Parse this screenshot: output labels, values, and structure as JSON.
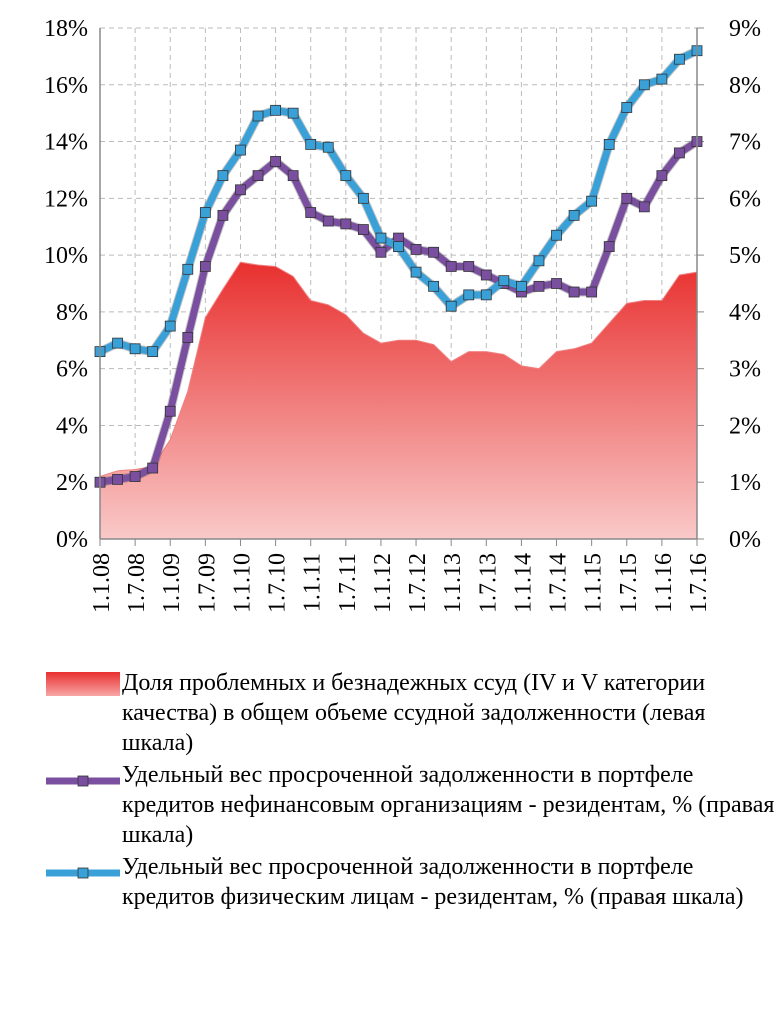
{
  "chart_data": {
    "type": "line",
    "categories": [
      "1.1.08",
      null,
      "1.7.08",
      null,
      "1.1.09",
      null,
      "1.7.09",
      null,
      "1.1.10",
      null,
      "1.7.10",
      null,
      "1.1.11",
      null,
      "1.7.11",
      null,
      "1.1.12",
      null,
      "1.7.12",
      null,
      "1.1.13",
      null,
      "1.7.13",
      null,
      "1.1.14",
      null,
      "1.7.14",
      null,
      "1.1.15",
      null,
      "1.7.15",
      null,
      "1.1.16",
      null,
      "1.7.16"
    ],
    "series": [
      {
        "name": "Доля проблемных и безнадежных ссуд (IV и V категории качества) в общем объеме ссудной задолженности (левая шкала)",
        "type": "area",
        "color": "#e8302f",
        "axis": "y",
        "values": [
          2.2,
          2.4,
          2.45,
          2.55,
          3.5,
          5.2,
          7.8,
          8.8,
          9.75,
          9.65,
          9.6,
          9.25,
          8.4,
          8.25,
          7.9,
          7.25,
          6.9,
          7.0,
          7.0,
          6.85,
          6.25,
          6.6,
          6.6,
          6.5,
          6.1,
          6.0,
          6.6,
          6.7,
          6.9,
          7.6,
          8.3,
          8.4,
          8.4,
          9.3,
          9.4
        ]
      },
      {
        "name": "Удельный вес просроченной задолженности в портфеле кредитов нефинансовым организациям - резидентам, % (правая шкала)",
        "type": "line",
        "color": "#7b4fa0",
        "axis": "y2",
        "values": [
          1.0,
          1.05,
          1.1,
          1.25,
          2.25,
          3.55,
          4.8,
          5.7,
          6.15,
          6.4,
          6.65,
          6.4,
          5.75,
          5.6,
          5.55,
          5.45,
          5.05,
          5.3,
          5.1,
          5.05,
          4.8,
          4.8,
          4.65,
          4.5,
          4.35,
          4.45,
          4.5,
          4.35,
          4.35,
          5.15,
          6.0,
          5.85,
          6.4,
          6.8,
          7.0
        ]
      },
      {
        "name": "Удельный вес просроченной задолженности в портфеле кредитов физическим лицам - резидентам, % (правая шкала)",
        "type": "line",
        "color": "#3aa0d8",
        "axis": "y2",
        "values": [
          3.3,
          3.45,
          3.35,
          3.3,
          3.75,
          4.75,
          5.75,
          6.4,
          6.85,
          7.45,
          7.55,
          7.5,
          6.95,
          6.9,
          6.4,
          6.0,
          5.3,
          5.15,
          4.7,
          4.45,
          4.1,
          4.3,
          4.3,
          4.55,
          4.45,
          4.9,
          5.35,
          5.7,
          5.95,
          6.95,
          7.6,
          8.0,
          8.1,
          8.45,
          8.6
        ]
      }
    ],
    "ylim": [
      0,
      18
    ],
    "yticks": [
      {
        "value": 0,
        "label": "0%"
      },
      {
        "value": 2,
        "label": "2%"
      },
      {
        "value": 4,
        "label": "4%"
      },
      {
        "value": 6,
        "label": "6%"
      },
      {
        "value": 8,
        "label": "8%"
      },
      {
        "value": 10,
        "label": "10%"
      },
      {
        "value": 12,
        "label": "12%"
      },
      {
        "value": 14,
        "label": "14%"
      },
      {
        "value": 16,
        "label": "16%"
      },
      {
        "value": 18,
        "label": "18%"
      }
    ],
    "y2lim": [
      0,
      9
    ],
    "y2ticks": [
      {
        "value": 0,
        "label": "0%"
      },
      {
        "value": 1,
        "label": "1%"
      },
      {
        "value": 2,
        "label": "2%"
      },
      {
        "value": 3,
        "label": "3%"
      },
      {
        "value": 4,
        "label": "4%"
      },
      {
        "value": 5,
        "label": "5%"
      },
      {
        "value": 6,
        "label": "6%"
      },
      {
        "value": 7,
        "label": "7%"
      },
      {
        "value": 8,
        "label": "8%"
      },
      {
        "value": 9,
        "label": "9%"
      }
    ],
    "grid": true,
    "legend": "bottom"
  }
}
